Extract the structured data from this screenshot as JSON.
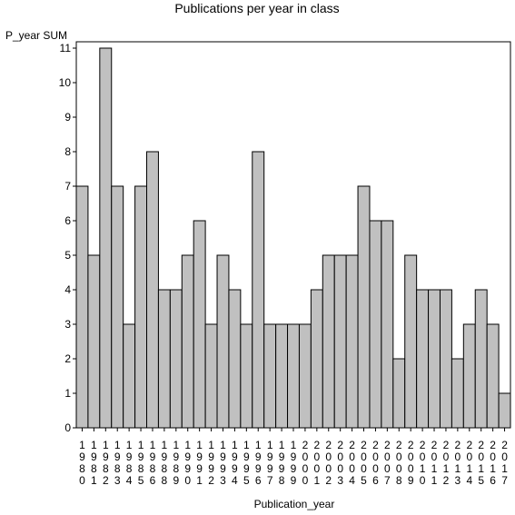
{
  "chart_data": {
    "type": "bar",
    "title": "Publications per year in class",
    "ylabel": "P_year SUM",
    "xlabel": "Publication_year",
    "ylim": [
      0,
      11
    ],
    "yticks": [
      0,
      1,
      2,
      3,
      4,
      5,
      6,
      7,
      8,
      9,
      10,
      11
    ],
    "grid": false,
    "categories": [
      "1980",
      "1981",
      "1982",
      "1983",
      "1984",
      "1985",
      "1986",
      "1988",
      "1989",
      "1990",
      "1991",
      "1992",
      "1993",
      "1994",
      "1995",
      "1996",
      "1997",
      "1998",
      "1999",
      "2000",
      "2001",
      "2002",
      "2003",
      "2004",
      "2005",
      "2006",
      "2007",
      "2008",
      "2009",
      "2010",
      "2011",
      "2012",
      "2013",
      "2014",
      "2015",
      "2016",
      "2017"
    ],
    "values": [
      7,
      5,
      11,
      7,
      3,
      7,
      8,
      4,
      4,
      5,
      6,
      3,
      5,
      4,
      3,
      8,
      3,
      3,
      3,
      3,
      4,
      5,
      5,
      5,
      7,
      6,
      6,
      2,
      5,
      4,
      4,
      4,
      2,
      3,
      4,
      3,
      1
    ],
    "colors": {
      "bar_fill": "#c0c0c0",
      "bar_stroke": "#000000"
    }
  }
}
